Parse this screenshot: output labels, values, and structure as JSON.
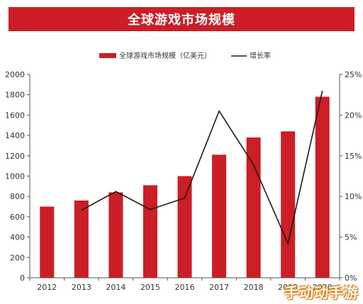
{
  "title": "全球游戏市场规模",
  "watermark": "手动动手游",
  "colors": {
    "bar": "#cc1e26",
    "line": "#1a1a1a",
    "title_bg": "#cc1e26"
  },
  "chart_data": {
    "type": "bar",
    "categories": [
      "2012",
      "2013",
      "2014",
      "2015",
      "2016",
      "2017",
      "2018",
      "2019",
      "2020"
    ],
    "series": [
      {
        "name": "全球游戏市场规模（亿美元）",
        "type": "bar",
        "axis": "left",
        "values": [
          700,
          760,
          840,
          910,
          1000,
          1210,
          1380,
          1440,
          1780
        ]
      },
      {
        "name": "增长率",
        "type": "line",
        "axis": "right",
        "values": [
          null,
          8.3,
          10.6,
          8.4,
          9.8,
          20.5,
          13.9,
          4.2,
          23.0
        ]
      }
    ],
    "y_left": {
      "min": 0,
      "max": 2000,
      "ticks": [
        "0",
        "200",
        "400",
        "600",
        "800",
        "1000",
        "1200",
        "1400",
        "1600",
        "1800",
        "2000"
      ]
    },
    "y_right": {
      "min": 0,
      "max": 25,
      "ticks": [
        "0%",
        "5%",
        "10%",
        "15%",
        "20%",
        "25%"
      ]
    },
    "legend": {
      "position": "top"
    },
    "grid": false
  }
}
